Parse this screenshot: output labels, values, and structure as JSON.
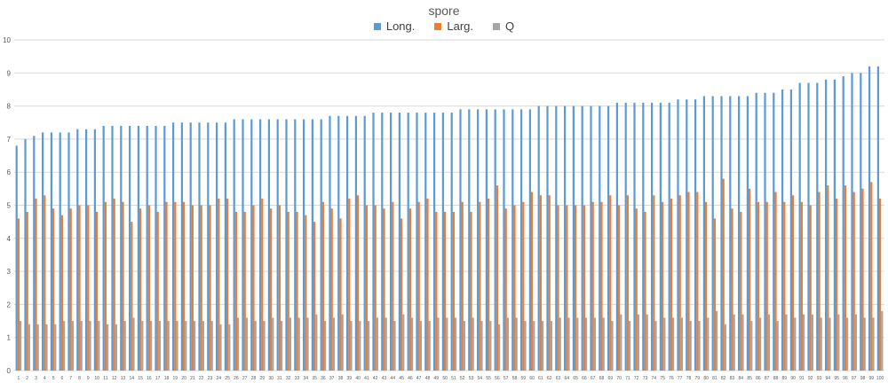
{
  "chart_data": {
    "type": "bar",
    "title": "spore",
    "xlabel": "",
    "ylabel": "",
    "ylim": [
      0,
      10
    ],
    "yticks": [
      0,
      1,
      2,
      3,
      4,
      5,
      6,
      7,
      8,
      9,
      10
    ],
    "grid": true,
    "legend_position": "top",
    "categories": [
      "1",
      "2",
      "3",
      "4",
      "5",
      "6",
      "7",
      "8",
      "9",
      "10",
      "11",
      "12",
      "13",
      "14",
      "15",
      "16",
      "17",
      "18",
      "19",
      "20",
      "21",
      "22",
      "23",
      "24",
      "25",
      "26",
      "27",
      "28",
      "29",
      "30",
      "31",
      "32",
      "33",
      "34",
      "35",
      "36",
      "37",
      "38",
      "39",
      "40",
      "41",
      "42",
      "43",
      "44",
      "45",
      "46",
      "47",
      "48",
      "49",
      "50",
      "51",
      "52",
      "53",
      "54",
      "55",
      "56",
      "57",
      "58",
      "59",
      "60",
      "61",
      "62",
      "63",
      "64",
      "65",
      "66",
      "67",
      "68",
      "69",
      "70",
      "71",
      "72",
      "73",
      "74",
      "75",
      "76",
      "77",
      "78",
      "79",
      "80",
      "81",
      "82",
      "83",
      "84",
      "85",
      "86",
      "87",
      "88",
      "89",
      "90",
      "91",
      "92",
      "93",
      "94",
      "95",
      "96",
      "97",
      "98",
      "99",
      "100"
    ],
    "series": [
      {
        "name": "Long.",
        "color": "#5b9bd5",
        "values": [
          6.8,
          7.0,
          7.1,
          7.2,
          7.2,
          7.2,
          7.2,
          7.3,
          7.3,
          7.3,
          7.4,
          7.4,
          7.4,
          7.4,
          7.4,
          7.4,
          7.4,
          7.4,
          7.5,
          7.5,
          7.5,
          7.5,
          7.5,
          7.5,
          7.5,
          7.6,
          7.6,
          7.6,
          7.6,
          7.6,
          7.6,
          7.6,
          7.6,
          7.6,
          7.6,
          7.6,
          7.7,
          7.7,
          7.7,
          7.7,
          7.7,
          7.8,
          7.8,
          7.8,
          7.8,
          7.8,
          7.8,
          7.8,
          7.8,
          7.8,
          7.8,
          7.9,
          7.9,
          7.9,
          7.9,
          7.9,
          7.9,
          7.9,
          7.9,
          7.9,
          8.0,
          8.0,
          8.0,
          8.0,
          8.0,
          8.0,
          8.0,
          8.0,
          8.0,
          8.1,
          8.1,
          8.1,
          8.1,
          8.1,
          8.1,
          8.1,
          8.2,
          8.2,
          8.2,
          8.3,
          8.3,
          8.3,
          8.3,
          8.3,
          8.3,
          8.4,
          8.4,
          8.4,
          8.5,
          8.5,
          8.7,
          8.7,
          8.7,
          8.8,
          8.8,
          8.9,
          9.0,
          9.0,
          9.2,
          9.2
        ]
      },
      {
        "name": "Larg.",
        "color": "#ed7d31",
        "values": [
          4.6,
          4.8,
          5.2,
          5.3,
          4.9,
          4.7,
          4.9,
          5.0,
          5.0,
          4.8,
          5.1,
          5.2,
          5.1,
          4.5,
          4.9,
          5.0,
          4.8,
          5.1,
          5.1,
          5.1,
          5.0,
          5.0,
          5.0,
          5.2,
          5.2,
          4.8,
          4.8,
          5.0,
          5.2,
          4.9,
          5.0,
          4.8,
          4.8,
          4.7,
          4.5,
          5.1,
          4.9,
          4.6,
          5.2,
          5.3,
          5.0,
          5.0,
          4.9,
          5.1,
          4.6,
          4.9,
          5.1,
          5.2,
          4.8,
          4.8,
          4.8,
          5.1,
          4.8,
          5.1,
          5.2,
          5.6,
          4.9,
          5.0,
          5.1,
          5.4,
          5.3,
          5.3,
          5.0,
          5.0,
          5.0,
          5.0,
          5.1,
          5.1,
          5.3,
          5.0,
          5.3,
          4.9,
          4.8,
          5.3,
          5.1,
          5.2,
          5.3,
          5.4,
          5.4,
          5.1,
          4.6,
          5.8,
          4.9,
          4.8,
          5.5,
          5.1,
          5.1,
          5.4,
          5.1,
          5.3,
          5.1,
          5.0,
          5.4,
          5.6,
          5.2,
          5.6,
          5.4,
          5.5,
          5.7,
          5.2
        ]
      },
      {
        "name": "Q",
        "color": "#a5a5a5",
        "values": [
          1.5,
          1.4,
          1.4,
          1.4,
          1.4,
          1.5,
          1.5,
          1.5,
          1.5,
          1.5,
          1.4,
          1.4,
          1.5,
          1.6,
          1.5,
          1.5,
          1.5,
          1.5,
          1.5,
          1.5,
          1.5,
          1.5,
          1.5,
          1.4,
          1.4,
          1.6,
          1.6,
          1.5,
          1.5,
          1.6,
          1.5,
          1.6,
          1.6,
          1.6,
          1.7,
          1.5,
          1.6,
          1.7,
          1.5,
          1.5,
          1.5,
          1.6,
          1.6,
          1.5,
          1.7,
          1.6,
          1.5,
          1.5,
          1.6,
          1.6,
          1.6,
          1.5,
          1.6,
          1.5,
          1.5,
          1.4,
          1.6,
          1.6,
          1.5,
          1.5,
          1.5,
          1.5,
          1.6,
          1.6,
          1.6,
          1.6,
          1.6,
          1.6,
          1.5,
          1.7,
          1.5,
          1.7,
          1.7,
          1.5,
          1.6,
          1.6,
          1.6,
          1.5,
          1.5,
          1.6,
          1.8,
          1.4,
          1.7,
          1.7,
          1.5,
          1.6,
          1.7,
          1.5,
          1.7,
          1.6,
          1.7,
          1.7,
          1.6,
          1.6,
          1.7,
          1.6,
          1.7,
          1.6,
          1.6,
          1.8
        ]
      }
    ]
  }
}
